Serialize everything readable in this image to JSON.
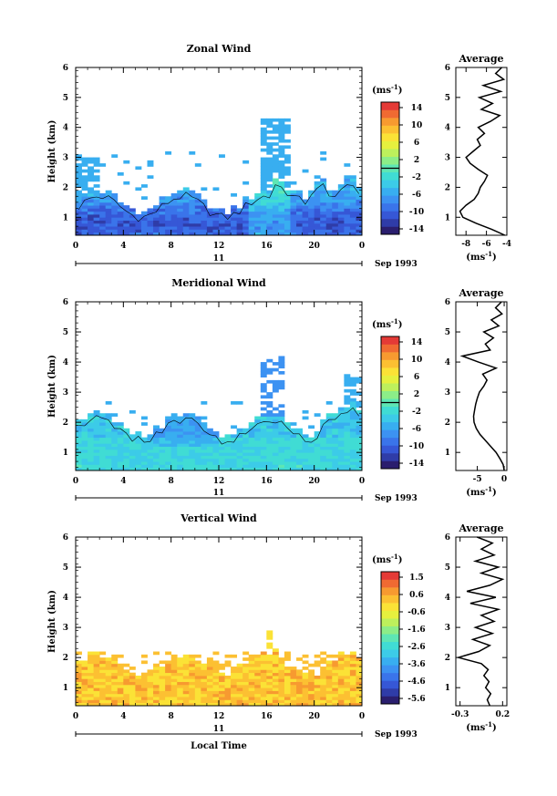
{
  "chart_data": [
    {
      "type": "heatmap",
      "title": "Zonal Wind",
      "xlabel": "",
      "ylabel": "Height (km)",
      "x_ticks": [
        "0",
        "4",
        "8",
        "12",
        "16",
        "20",
        "0"
      ],
      "y_ticks": [
        "1",
        "2",
        "3",
        "4",
        "5",
        "6"
      ],
      "xlim_hours": [
        0,
        24
      ],
      "ylim_km": [
        0.4,
        6
      ],
      "date_day": "11",
      "date_month": "Sep 1993",
      "grid": false,
      "colorbar": {
        "label": "(ms⁻¹)",
        "ticks": [
          "14",
          "10",
          "6",
          "2",
          "-2",
          "-6",
          "-10",
          "-14"
        ],
        "range": [
          -16,
          16
        ],
        "marker_value": 0
      },
      "field": {
        "kind": "zonal",
        "base_value": -9,
        "top_km": 1.5,
        "cell_height_km": 0.1,
        "cell_hours": 0.5
      },
      "profile": {
        "title": "Average",
        "xlabel": "(ms⁻¹)",
        "x_ticks": [
          "-8",
          "-6",
          "-4"
        ],
        "xlim": [
          -9,
          -4
        ],
        "height_km": [
          0.4,
          0.6,
          0.8,
          1.0,
          1.2,
          1.4,
          1.6,
          1.8,
          2.0,
          2.2,
          2.4,
          2.6,
          2.8,
          3.0,
          3.2,
          3.4,
          3.6,
          3.8,
          4.0,
          4.2,
          4.4,
          4.6,
          4.8,
          5.0,
          5.2,
          5.4,
          5.6,
          5.8,
          6.0
        ],
        "values": [
          -4.2,
          -5.5,
          -7.0,
          -8.3,
          -8.6,
          -8.0,
          -7.2,
          -6.8,
          -6.6,
          -6.2,
          -5.9,
          -6.8,
          -7.6,
          -8.0,
          -7.3,
          -6.6,
          -6.9,
          -6.2,
          -6.8,
          -5.6,
          -4.7,
          -6.5,
          -5.4,
          -6.7,
          -4.6,
          -6.3,
          -4.3,
          -5.1,
          -4.5
        ]
      }
    },
    {
      "type": "heatmap",
      "title": "Meridional Wind",
      "xlabel": "",
      "ylabel": "Height (km)",
      "x_ticks": [
        "0",
        "4",
        "8",
        "12",
        "16",
        "20",
        "0"
      ],
      "y_ticks": [
        "1",
        "2",
        "3",
        "4",
        "5",
        "6"
      ],
      "xlim_hours": [
        0,
        24
      ],
      "ylim_km": [
        0.4,
        6
      ],
      "date_day": "11",
      "date_month": "Sep 1993",
      "grid": false,
      "colorbar": {
        "label": "(ms⁻¹)",
        "ticks": [
          "14",
          "10",
          "6",
          "2",
          "-2",
          "-6",
          "-10",
          "-14"
        ],
        "range": [
          -16,
          16
        ],
        "marker_value": 0
      },
      "field": {
        "kind": "meridional",
        "base_value": -3,
        "top_km": 1.9,
        "cell_height_km": 0.1,
        "cell_hours": 0.5
      },
      "profile": {
        "title": "Average",
        "xlabel": "(ms⁻¹)",
        "x_ticks": [
          "-5",
          "0"
        ],
        "xlim": [
          -9,
          0.5
        ],
        "height_km": [
          0.4,
          0.6,
          0.8,
          1.0,
          1.2,
          1.4,
          1.6,
          1.8,
          2.0,
          2.2,
          2.4,
          2.6,
          2.8,
          3.0,
          3.2,
          3.4,
          3.6,
          3.8,
          4.0,
          4.2,
          4.4,
          4.6,
          4.8,
          5.0,
          5.2,
          5.4,
          5.6,
          5.8,
          6.0
        ],
        "values": [
          0.0,
          -0.2,
          -0.8,
          -1.5,
          -2.5,
          -3.5,
          -4.5,
          -5.2,
          -5.6,
          -5.7,
          -5.5,
          -5.3,
          -5.0,
          -4.6,
          -3.8,
          -3.2,
          -4.0,
          -1.5,
          -4.8,
          -7.8,
          -2.6,
          -3.5,
          -2.0,
          -3.8,
          -1.0,
          -2.4,
          -0.4,
          -1.6,
          -0.5
        ]
      }
    },
    {
      "type": "heatmap",
      "title": "Vertical Wind",
      "xlabel": "Local Time",
      "ylabel": "Height (km)",
      "x_ticks": [
        "0",
        "4",
        "8",
        "12",
        "16",
        "20",
        "0"
      ],
      "y_ticks": [
        "1",
        "2",
        "3",
        "4",
        "5",
        "6"
      ],
      "xlim_hours": [
        0,
        24
      ],
      "ylim_km": [
        0.4,
        6
      ],
      "date_day": "11",
      "date_month": "Sep 1993",
      "grid": false,
      "colorbar": {
        "label": "(ms⁻¹)",
        "ticks": [
          "1.5",
          "0.6",
          "-0.6",
          "-1.6",
          "-2.6",
          "-3.6",
          "-4.6",
          "-5.6"
        ],
        "range": [
          -6.1,
          2.0
        ],
        "marker_value": null
      },
      "field": {
        "kind": "vertical",
        "base_value": 0.2,
        "top_km": 1.75,
        "cell_height_km": 0.1,
        "cell_hours": 0.5
      },
      "profile": {
        "title": "Average",
        "xlabel": "(ms⁻¹)",
        "x_ticks": [
          "-0.3",
          "0.2"
        ],
        "xlim": [
          -0.35,
          0.25
        ],
        "height_km": [
          0.4,
          0.6,
          0.8,
          1.0,
          1.2,
          1.4,
          1.6,
          1.8,
          2.0,
          2.2,
          2.4,
          2.6,
          2.8,
          3.0,
          3.2,
          3.4,
          3.6,
          3.8,
          4.0,
          4.2,
          4.4,
          4.6,
          4.8,
          5.0,
          5.2,
          5.4,
          5.6,
          5.8,
          6.0
        ],
        "values": [
          0.05,
          0.02,
          0.06,
          0.0,
          0.04,
          -0.02,
          0.03,
          -0.05,
          -0.32,
          -0.08,
          0.05,
          -0.15,
          0.08,
          -0.12,
          0.1,
          -0.05,
          0.15,
          -0.18,
          0.12,
          -0.22,
          0.05,
          0.2,
          -0.05,
          0.15,
          -0.12,
          0.1,
          -0.05,
          0.08,
          -0.1
        ]
      }
    }
  ]
}
